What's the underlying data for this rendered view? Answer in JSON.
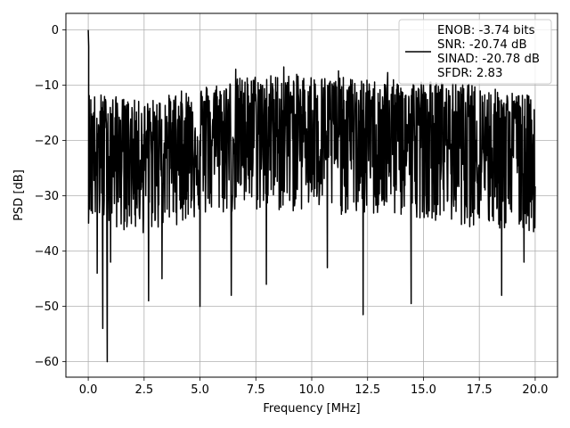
{
  "chart_data": {
    "type": "line",
    "title": "",
    "xlabel": "Frequency [MHz]",
    "ylabel": "PSD [dB]",
    "xlim": [
      -1.0,
      21.0
    ],
    "ylim": [
      -62.8,
      3.0
    ],
    "xticks": [
      0.0,
      2.5,
      5.0,
      7.5,
      10.0,
      12.5,
      15.0,
      17.5,
      20.0
    ],
    "xtick_labels": [
      "0.0",
      "2.5",
      "5.0",
      "7.5",
      "10.0",
      "12.5",
      "15.0",
      "17.5",
      "20.0"
    ],
    "yticks": [
      0,
      -10,
      -20,
      -30,
      -40,
      -50,
      -60
    ],
    "ytick_labels": [
      "0",
      "−10",
      "−20",
      "−30",
      "−40",
      "−50",
      "−60"
    ],
    "grid": true,
    "legend_position": "top-right",
    "line_color": "#000000",
    "legend_lines": [
      "ENOB: -3.74 bits",
      "SNR: -20.74 dB",
      "SINAD: -20.78 dB",
      "SFDR: 2.83"
    ],
    "series": [
      {
        "description": "noisy power spectral density trace, 0 to 20 MHz",
        "envelope_x": [
          0.0,
          2.5,
          5.0,
          7.5,
          10.0,
          12.5,
          15.0,
          17.5,
          20.0
        ],
        "envelope_top": [
          -11,
          -13,
          -10,
          -8,
          -8,
          -9,
          -9,
          -10,
          -12
        ],
        "envelope_center": [
          -21,
          -22,
          -20,
          -18,
          -18,
          -19,
          -19,
          -20,
          -21
        ],
        "envelope_bottom": [
          -35,
          -37,
          -34,
          -33,
          -33,
          -34,
          -34,
          -36,
          -37
        ],
        "peaks": [
          {
            "x": 0.0,
            "y": 0.0
          },
          {
            "x": 0.02,
            "y": -3.0
          },
          {
            "x": 6.6,
            "y": -7.1
          },
          {
            "x": 8.75,
            "y": -6.7
          },
          {
            "x": 11.2,
            "y": -7.4
          },
          {
            "x": 13.4,
            "y": -7.7
          }
        ],
        "dips": [
          {
            "x": 0.4,
            "y": -44
          },
          {
            "x": 0.65,
            "y": -54
          },
          {
            "x": 0.85,
            "y": -60
          },
          {
            "x": 1.0,
            "y": -42
          },
          {
            "x": 2.7,
            "y": -49
          },
          {
            "x": 3.3,
            "y": -45
          },
          {
            "x": 5.0,
            "y": -50
          },
          {
            "x": 6.4,
            "y": -48
          },
          {
            "x": 6.6,
            "y": -47
          },
          {
            "x": 7.97,
            "y": -46
          },
          {
            "x": 10.7,
            "y": -43
          },
          {
            "x": 12.3,
            "y": -51.5
          },
          {
            "x": 14.45,
            "y": -49.5
          },
          {
            "x": 18.5,
            "y": -48
          },
          {
            "x": 19.5,
            "y": -42
          }
        ]
      }
    ]
  }
}
